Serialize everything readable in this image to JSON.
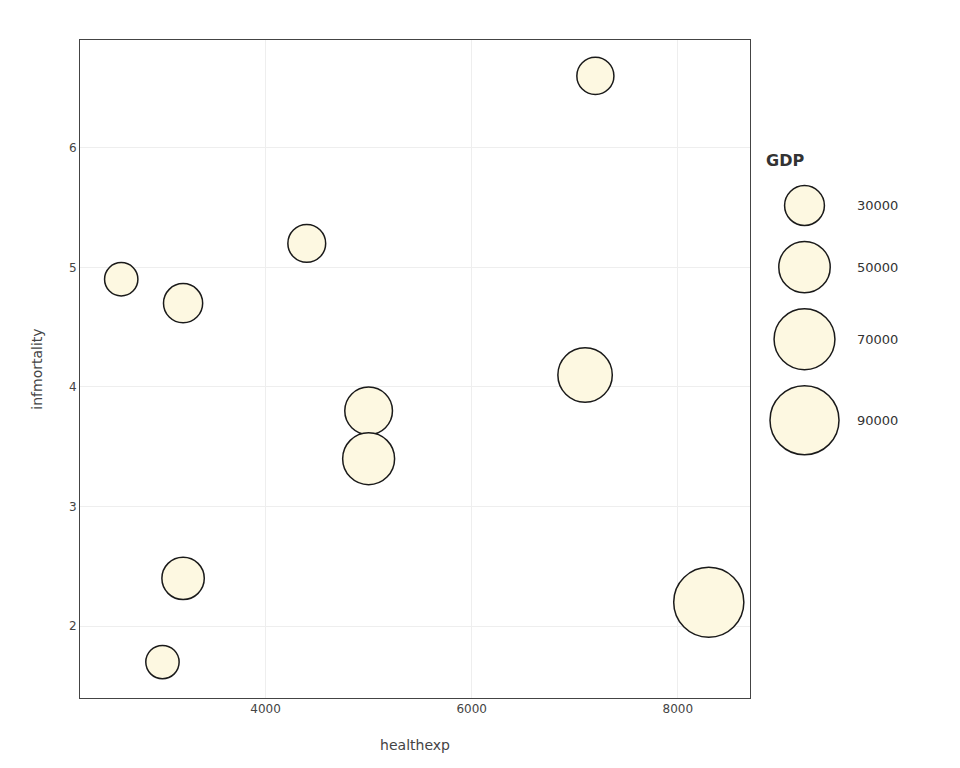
{
  "chart_data": {
    "type": "bubble",
    "xlabel": "healthexp",
    "ylabel": "infmortality",
    "x": [
      2600,
      3000,
      3200,
      3200,
      4400,
      5000,
      5000,
      7100,
      7200,
      8300
    ],
    "values": [
      4.9,
      1.7,
      4.7,
      2.4,
      5.2,
      3.8,
      3.4,
      4.1,
      6.6,
      2.2
    ],
    "sizes": [
      21000,
      21000,
      29000,
      34000,
      27000,
      43000,
      51000,
      56000,
      26000,
      93000
    ],
    "size_legend": {
      "title": "GDP",
      "values": [
        30000,
        50000,
        70000,
        90000
      ]
    },
    "color": "#FDF8E1",
    "xlim": [
      2200,
      8700
    ],
    "xticks": [
      4000,
      6000,
      8000
    ],
    "ylim": [
      1.4,
      6.9
    ],
    "yticks": [
      2,
      3,
      4,
      5,
      6
    ],
    "grid": true,
    "legend": "right"
  }
}
